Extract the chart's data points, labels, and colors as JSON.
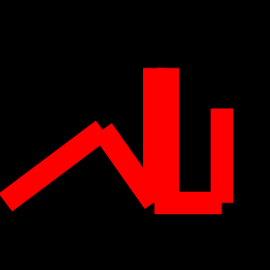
{
  "bg_color": "#000000",
  "line_color": "#ff0000",
  "line_width": 18,
  "figsize": [
    3.0,
    3.0
  ],
  "dpi": 100,
  "segments": [
    {
      "x": [
        0.02,
        0.38
      ],
      "y": [
        0.25,
        0.52
      ]
    },
    {
      "x": [
        0.38,
        0.57
      ],
      "y": [
        0.52,
        0.25
      ]
    },
    {
      "x": [
        0.57,
        0.57
      ],
      "y": [
        0.25,
        0.75
      ]
    },
    {
      "x": [
        0.62,
        0.62
      ],
      "y": [
        0.29,
        0.75
      ]
    },
    {
      "x": [
        0.57,
        0.82
      ],
      "y": [
        0.25,
        0.25
      ]
    },
    {
      "x": [
        0.82,
        0.82
      ],
      "y": [
        0.25,
        0.6
      ]
    }
  ]
}
